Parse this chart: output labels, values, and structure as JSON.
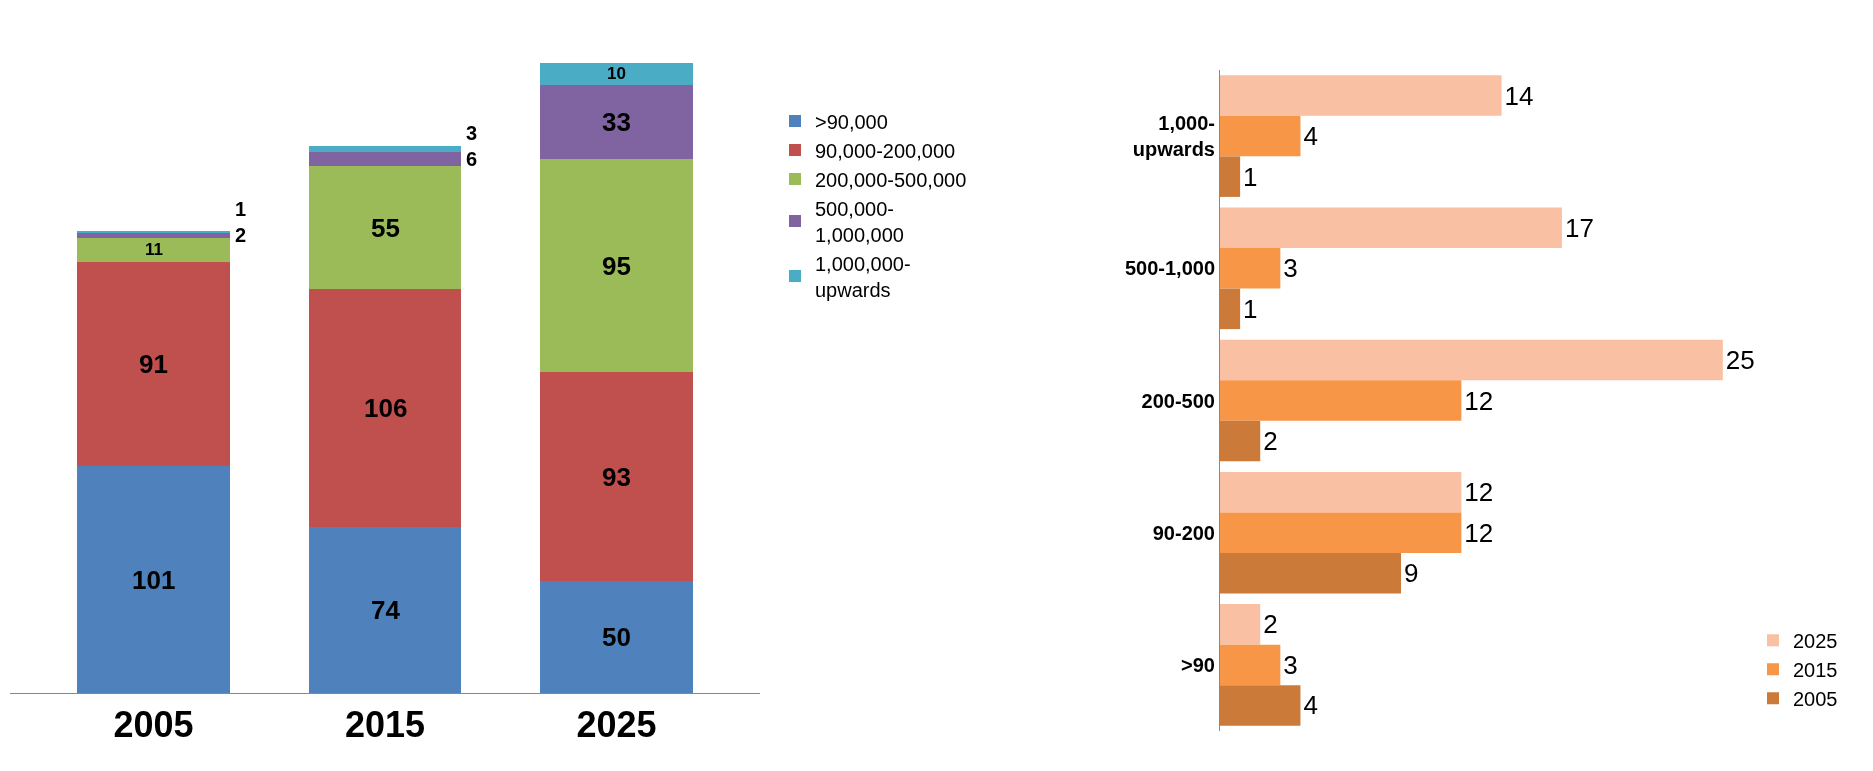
{
  "chart_data": [
    {
      "type": "bar",
      "stacked": true,
      "data_labels": true,
      "tick_labels": "x",
      "categories": [
        "2005",
        "2015",
        "2025"
      ],
      "legend": "right",
      "grid": false,
      "series": [
        {
          "name": ">90,000",
          "color": "#4f81bd",
          "values": [
            101,
            74,
            50
          ]
        },
        {
          "name": "90,000-200,000",
          "color": "#c0504d",
          "values": [
            91,
            106,
            93
          ]
        },
        {
          "name": "200,000-500,000",
          "color": "#9bbb59",
          "values": [
            11,
            55,
            95
          ]
        },
        {
          "name": "500,000-1,000,000",
          "color": "#8064a2",
          "values": [
            2,
            6,
            33
          ]
        },
        {
          "name": "1,000,000-upwards",
          "color": "#4bacc6",
          "values": [
            1,
            3,
            10
          ]
        }
      ]
    },
    {
      "type": "bar",
      "orientation": "horizontal",
      "data_labels": true,
      "tick_labels": "y",
      "categories": [
        "1,000-upwards",
        "500-1,000",
        "200-500",
        "90-200",
        ">90"
      ],
      "legend": "bottom right",
      "grid": false,
      "series": [
        {
          "name": "2025",
          "color": "#fac0a4",
          "values": [
            14,
            17,
            25,
            12,
            2
          ]
        },
        {
          "name": "2015",
          "color": "#f79646",
          "values": [
            4,
            3,
            12,
            12,
            3
          ]
        },
        {
          "name": "2005",
          "color": "#cc7a3a",
          "values": [
            1,
            1,
            2,
            9,
            4
          ]
        }
      ]
    }
  ]
}
